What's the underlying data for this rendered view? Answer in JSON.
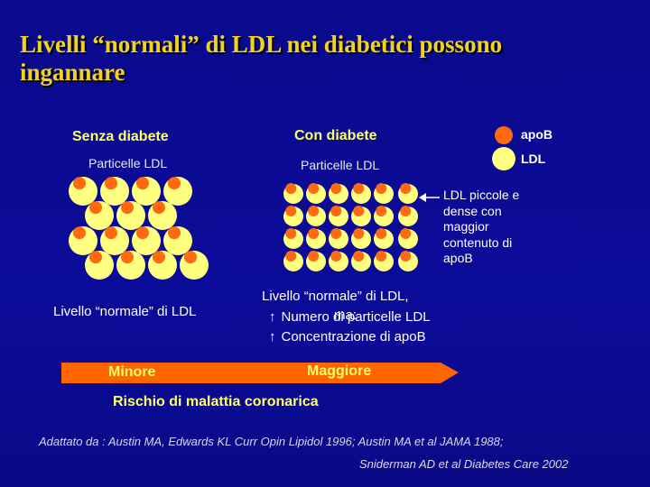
{
  "title_line1": "Livelli “normali” di LDL nei diabetici possono",
  "title_line2": "ingannare",
  "left": {
    "heading": "Senza diabete",
    "subheading": "Particelle LDL",
    "caption": "Livello “normale” di LDL"
  },
  "center": {
    "heading": "Con diabete",
    "subheading": "Particelle LDL",
    "caption_line1": "Livello “normale” di LDL,",
    "caption_ma": "ma:",
    "bullet1": "Numero di particelle LDL",
    "bullet2": "Concentrazione di apoB",
    "bullet_symbol": "↑"
  },
  "legend": {
    "apob": "apoB",
    "ldl": "LDL"
  },
  "annotation": [
    "LDL piccole e",
    "dense con",
    "maggior",
    "contenuto di",
    "apoB"
  ],
  "arrow": {
    "low_label": "Minore",
    "high_label": "Maggiore",
    "caption": "Rischio di malattia coronarica"
  },
  "reference_line1": "Adattato da : Austin MA, Edwards KL Curr Opin Lipidol 1996; Austin MA et al JAMA 1988;",
  "reference_line2": "Sniderman AD et al Diabetes Care 2002",
  "colors": {
    "background": "#0a0a8c",
    "title": "#f2d21a",
    "ldl": "#ffff80",
    "apob": "#ff6a10",
    "arrow": "#ff6600"
  }
}
